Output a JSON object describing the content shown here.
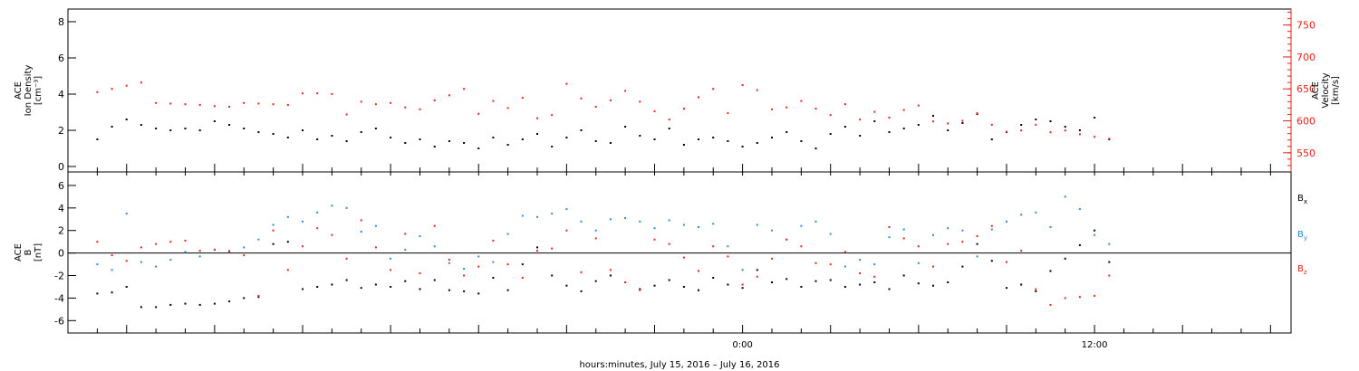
{
  "chart_data": [
    {
      "type": "scatter",
      "panel": "plasma",
      "left_axis": {
        "label_lines": [
          "ACE",
          "Ion Density",
          "[cm⁻³]"
        ],
        "ylim": [
          -0.3,
          8.7
        ],
        "ticks": [
          "0",
          "2",
          "4",
          "6",
          "8"
        ],
        "color": "#000000"
      },
      "right_axis": {
        "label_lines": [
          "ACE",
          "Velocity",
          "[km/s]"
        ],
        "ylim": [
          520,
          775
        ],
        "ticks": [
          "550",
          "600",
          "650",
          "700",
          "750"
        ],
        "color": "#e8231e"
      },
      "series": [
        {
          "color": "#000000",
          "axis": "left",
          "x": [
            -22.0,
            -21.5,
            -21.0,
            -20.5,
            -20.0,
            -19.5,
            -19.0,
            -18.5,
            -18.0,
            -17.5,
            -17.0,
            -16.5,
            -16.0,
            -15.5,
            -15.0,
            -14.5,
            -14.0,
            -13.5,
            -13.0,
            -12.5,
            -12.0,
            -11.5,
            -11.0,
            -10.5,
            -10.0,
            -9.5,
            -9.0,
            -8.5,
            -8.0,
            -7.5,
            -7.0,
            -6.5,
            -6.0,
            -5.5,
            -5.0,
            -4.5,
            -4.0,
            -3.5,
            -3.0,
            -2.5,
            -2.0,
            -1.5,
            -1.0,
            -0.5,
            0.0,
            0.5,
            1.0,
            1.5,
            2.0,
            2.5,
            3.0,
            3.5,
            4.0,
            4.5,
            5.0,
            5.5,
            6.0,
            6.5,
            7.0,
            7.5,
            8.0,
            8.5,
            9.0,
            9.5,
            10.0,
            10.5,
            11.0,
            11.5,
            12.0,
            12.5
          ],
          "y": [
            1.5,
            2.2,
            2.6,
            2.3,
            2.1,
            2.0,
            2.1,
            2.0,
            2.5,
            2.3,
            2.1,
            1.9,
            1.8,
            1.6,
            2.0,
            1.5,
            1.7,
            1.4,
            1.9,
            2.1,
            1.6,
            1.3,
            1.5,
            1.1,
            1.4,
            1.3,
            1.0,
            1.6,
            1.2,
            1.5,
            1.8,
            1.1,
            1.6,
            2.0,
            1.4,
            1.3,
            2.2,
            1.7,
            1.5,
            2.1,
            1.2,
            1.5,
            1.6,
            1.4,
            1.1,
            1.3,
            1.6,
            1.9,
            1.4,
            1.0,
            1.8,
            2.2,
            1.7,
            2.5,
            1.9,
            2.1,
            2.3,
            2.8,
            2.0,
            2.4,
            2.9,
            1.5,
            1.9,
            2.3,
            2.6,
            2.5,
            2.2,
            2.0,
            2.7,
            1.5
          ]
        },
        {
          "color": "#e8231e",
          "axis": "right",
          "x": [
            -22.0,
            -21.5,
            -21.0,
            -20.5,
            -20.0,
            -19.5,
            -19.0,
            -18.5,
            -18.0,
            -17.5,
            -17.0,
            -16.5,
            -16.0,
            -15.5,
            -15.0,
            -14.5,
            -14.0,
            -13.5,
            -13.0,
            -12.5,
            -12.0,
            -11.5,
            -11.0,
            -10.5,
            -10.0,
            -9.5,
            -9.0,
            -8.5,
            -8.0,
            -7.5,
            -7.0,
            -6.5,
            -6.0,
            -5.5,
            -5.0,
            -4.5,
            -4.0,
            -3.5,
            -3.0,
            -2.5,
            -2.0,
            -1.5,
            -1.0,
            -0.5,
            0.0,
            0.5,
            1.0,
            1.5,
            2.0,
            2.5,
            3.0,
            3.5,
            4.0,
            4.5,
            5.0,
            5.5,
            6.0,
            6.5,
            7.0,
            7.5,
            8.0,
            8.5,
            9.0,
            9.5,
            10.0,
            10.5,
            11.0,
            11.5,
            12.0,
            12.5
          ],
          "y": [
            645,
            650,
            655,
            660,
            628,
            627,
            626,
            625,
            623,
            622,
            628,
            627,
            626,
            625,
            643,
            643,
            642,
            610,
            630,
            626,
            628,
            621,
            618,
            632,
            640,
            650,
            611,
            631,
            620,
            636,
            604,
            609,
            658,
            635,
            622,
            632,
            647,
            630,
            615,
            602,
            619,
            637,
            650,
            612,
            656,
            648,
            618,
            621,
            631,
            619,
            609,
            626,
            602,
            614,
            605,
            617,
            624,
            599,
            596,
            600,
            612,
            594,
            583,
            585,
            594,
            582,
            585,
            579,
            575,
            572
          ]
        }
      ]
    },
    {
      "type": "scatter",
      "panel": "magnetic_field",
      "left_axis": {
        "label_lines": [
          "ACE",
          "B",
          "[nT]"
        ],
        "ylim": [
          -7.1,
          7.2
        ],
        "ticks": [
          "-6",
          "-4",
          "-2",
          "0",
          "2",
          "4",
          "6"
        ],
        "color": "#000000"
      },
      "zero_line": true,
      "x_axis": {
        "label": "hours:minutes, July 15, 2016 – July 16, 2016",
        "xlim": [
          -23.0,
          18.7
        ],
        "tick_labels": [
          {
            "x": 0,
            "text": "0:00"
          },
          {
            "x": 12,
            "text": "12:00"
          }
        ]
      },
      "legend": [
        {
          "text": "B",
          "sub": "x",
          "color": "#000000"
        },
        {
          "text": "B",
          "sub": "y",
          "color": "#2a8ae0"
        },
        {
          "text": "B",
          "sub": "z",
          "color": "#e8231e"
        }
      ],
      "series": [
        {
          "name": "Bx",
          "color": "#000000",
          "x": [
            -22.0,
            -21.5,
            -21.0,
            -20.5,
            -20.0,
            -19.5,
            -19.0,
            -18.5,
            -18.0,
            -17.5,
            -17.0,
            -16.5,
            -16.0,
            -15.5,
            -15.0,
            -14.5,
            -14.0,
            -13.5,
            -13.0,
            -12.5,
            -12.0,
            -11.5,
            -11.0,
            -10.5,
            -10.0,
            -9.5,
            -9.0,
            -8.5,
            -8.0,
            -7.5,
            -7.0,
            -6.5,
            -6.0,
            -5.5,
            -5.0,
            -4.5,
            -4.0,
            -3.5,
            -3.0,
            -2.5,
            -2.0,
            -1.5,
            -1.0,
            -0.5,
            0.0,
            0.5,
            1.0,
            1.5,
            2.0,
            2.5,
            3.0,
            3.5,
            4.0,
            4.5,
            5.0,
            5.5,
            6.0,
            6.5,
            7.0,
            7.5,
            8.0,
            8.5,
            9.0,
            9.5,
            10.0,
            10.5,
            11.0,
            11.5,
            12.0,
            12.5
          ],
          "y": [
            -3.6,
            -3.5,
            -3.0,
            -4.8,
            -4.8,
            -4.6,
            -4.5,
            -4.6,
            -4.5,
            -4.3,
            -4.0,
            -3.9,
            0.8,
            1.0,
            -3.2,
            -3.0,
            -2.8,
            -2.4,
            -3.1,
            -2.8,
            -3.0,
            -2.5,
            -3.2,
            -2.4,
            -3.3,
            -3.4,
            -3.6,
            -2.2,
            -3.3,
            -1.0,
            0.5,
            -2.0,
            -2.9,
            -3.4,
            -2.5,
            -2.0,
            -2.6,
            -3.2,
            -2.9,
            -2.4,
            -3.0,
            -3.3,
            -2.2,
            -2.8,
            -3.1,
            -1.5,
            -2.6,
            -2.3,
            -3.0,
            -2.5,
            -2.4,
            -3.0,
            -2.8,
            -2.6,
            -3.2,
            -2.0,
            -2.7,
            -2.9,
            -2.6,
            -1.2,
            0.8,
            -0.7,
            -3.1,
            -2.8,
            -3.4,
            -1.6,
            -0.5,
            0.7,
            2.0,
            -0.8
          ]
        },
        {
          "name": "By",
          "color": "#2a8ae0",
          "x": [
            -22.0,
            -21.5,
            -21.0,
            -20.5,
            -20.0,
            -19.5,
            -19.0,
            -18.5,
            -18.0,
            -17.5,
            -17.0,
            -16.5,
            -16.0,
            -15.5,
            -15.0,
            -14.5,
            -14.0,
            -13.5,
            -13.0,
            -12.5,
            -12.0,
            -11.5,
            -11.0,
            -10.5,
            -10.0,
            -9.5,
            -9.0,
            -8.5,
            -8.0,
            -7.5,
            -7.0,
            -6.5,
            -6.0,
            -5.5,
            -5.0,
            -4.5,
            -4.0,
            -3.5,
            -3.0,
            -2.5,
            -2.0,
            -1.5,
            -1.0,
            -0.5,
            0.0,
            0.5,
            1.0,
            1.5,
            2.0,
            2.5,
            3.0,
            3.5,
            4.0,
            4.5,
            5.0,
            5.5,
            6.0,
            6.5,
            7.0,
            7.5,
            8.0,
            8.5,
            9.0,
            9.5,
            10.0,
            10.5,
            11.0,
            11.5,
            12.0,
            12.5
          ],
          "y": [
            -1.0,
            -1.5,
            3.5,
            -0.8,
            -1.2,
            -0.6,
            0.1,
            -0.3,
            0.3,
            0.2,
            0.5,
            1.2,
            2.5,
            3.2,
            2.8,
            3.6,
            4.2,
            4.0,
            1.9,
            2.4,
            -0.5,
            0.3,
            1.5,
            0.6,
            -0.9,
            -1.4,
            -0.3,
            -0.8,
            1.7,
            3.3,
            3.2,
            3.5,
            3.9,
            2.8,
            2.0,
            3.0,
            3.1,
            2.8,
            2.2,
            2.9,
            2.5,
            2.3,
            2.6,
            0.6,
            -1.5,
            2.5,
            2.0,
            1.2,
            2.4,
            2.8,
            1.7,
            -1.2,
            -0.6,
            -1.0,
            1.4,
            2.1,
            -0.9,
            1.6,
            2.2,
            2.0,
            -0.3,
            2.1,
            2.8,
            3.4,
            3.6,
            2.3,
            5.0,
            3.9,
            1.6,
            0.8
          ]
        },
        {
          "name": "Bz",
          "color": "#e8231e",
          "x": [
            -22.0,
            -21.5,
            -21.0,
            -20.5,
            -20.0,
            -19.5,
            -19.0,
            -18.5,
            -18.0,
            -17.5,
            -17.0,
            -16.5,
            -16.0,
            -15.5,
            -15.0,
            -14.5,
            -14.0,
            -13.5,
            -13.0,
            -12.5,
            -12.0,
            -11.5,
            -11.0,
            -10.5,
            -10.0,
            -9.5,
            -9.0,
            -8.5,
            -8.0,
            -7.5,
            -7.0,
            -6.5,
            -6.0,
            -5.5,
            -5.0,
            -4.5,
            -4.0,
            -3.5,
            -3.0,
            -2.5,
            -2.0,
            -1.5,
            -1.0,
            -0.5,
            0.0,
            0.5,
            1.0,
            1.5,
            2.0,
            2.5,
            3.0,
            3.5,
            4.0,
            4.5,
            5.0,
            5.5,
            6.0,
            6.5,
            7.0,
            7.5,
            8.0,
            8.5,
            9.0,
            9.5,
            10.0,
            10.5,
            11.0,
            11.5,
            12.0,
            12.5
          ],
          "y": [
            1.0,
            -0.2,
            -0.7,
            0.5,
            0.8,
            1.0,
            1.1,
            0.2,
            0.3,
            0.1,
            -0.2,
            -3.8,
            2.0,
            -1.5,
            0.6,
            2.2,
            1.6,
            -0.5,
            2.9,
            0.5,
            -1.5,
            1.7,
            -1.8,
            2.4,
            -0.6,
            -2.0,
            -1.2,
            1.1,
            -1.0,
            -2.2,
            0.2,
            0.4,
            2.0,
            -1.7,
            1.3,
            -1.5,
            -2.6,
            -3.3,
            1.2,
            0.8,
            -0.4,
            -1.6,
            0.6,
            -0.3,
            -2.8,
            -2.1,
            -0.5,
            1.2,
            0.6,
            -0.9,
            -1.0,
            0.1,
            -1.8,
            -2.1,
            2.3,
            1.3,
            0.6,
            -1.2,
            0.8,
            1.0,
            1.5,
            2.4,
            -0.8,
            0.2,
            -3.2,
            -4.6,
            -4.0,
            -3.9,
            -3.8,
            -2.0
          ]
        }
      ]
    }
  ],
  "page": {
    "xlabel": "hours:minutes, July 15, 2016 – July 16, 2016"
  }
}
